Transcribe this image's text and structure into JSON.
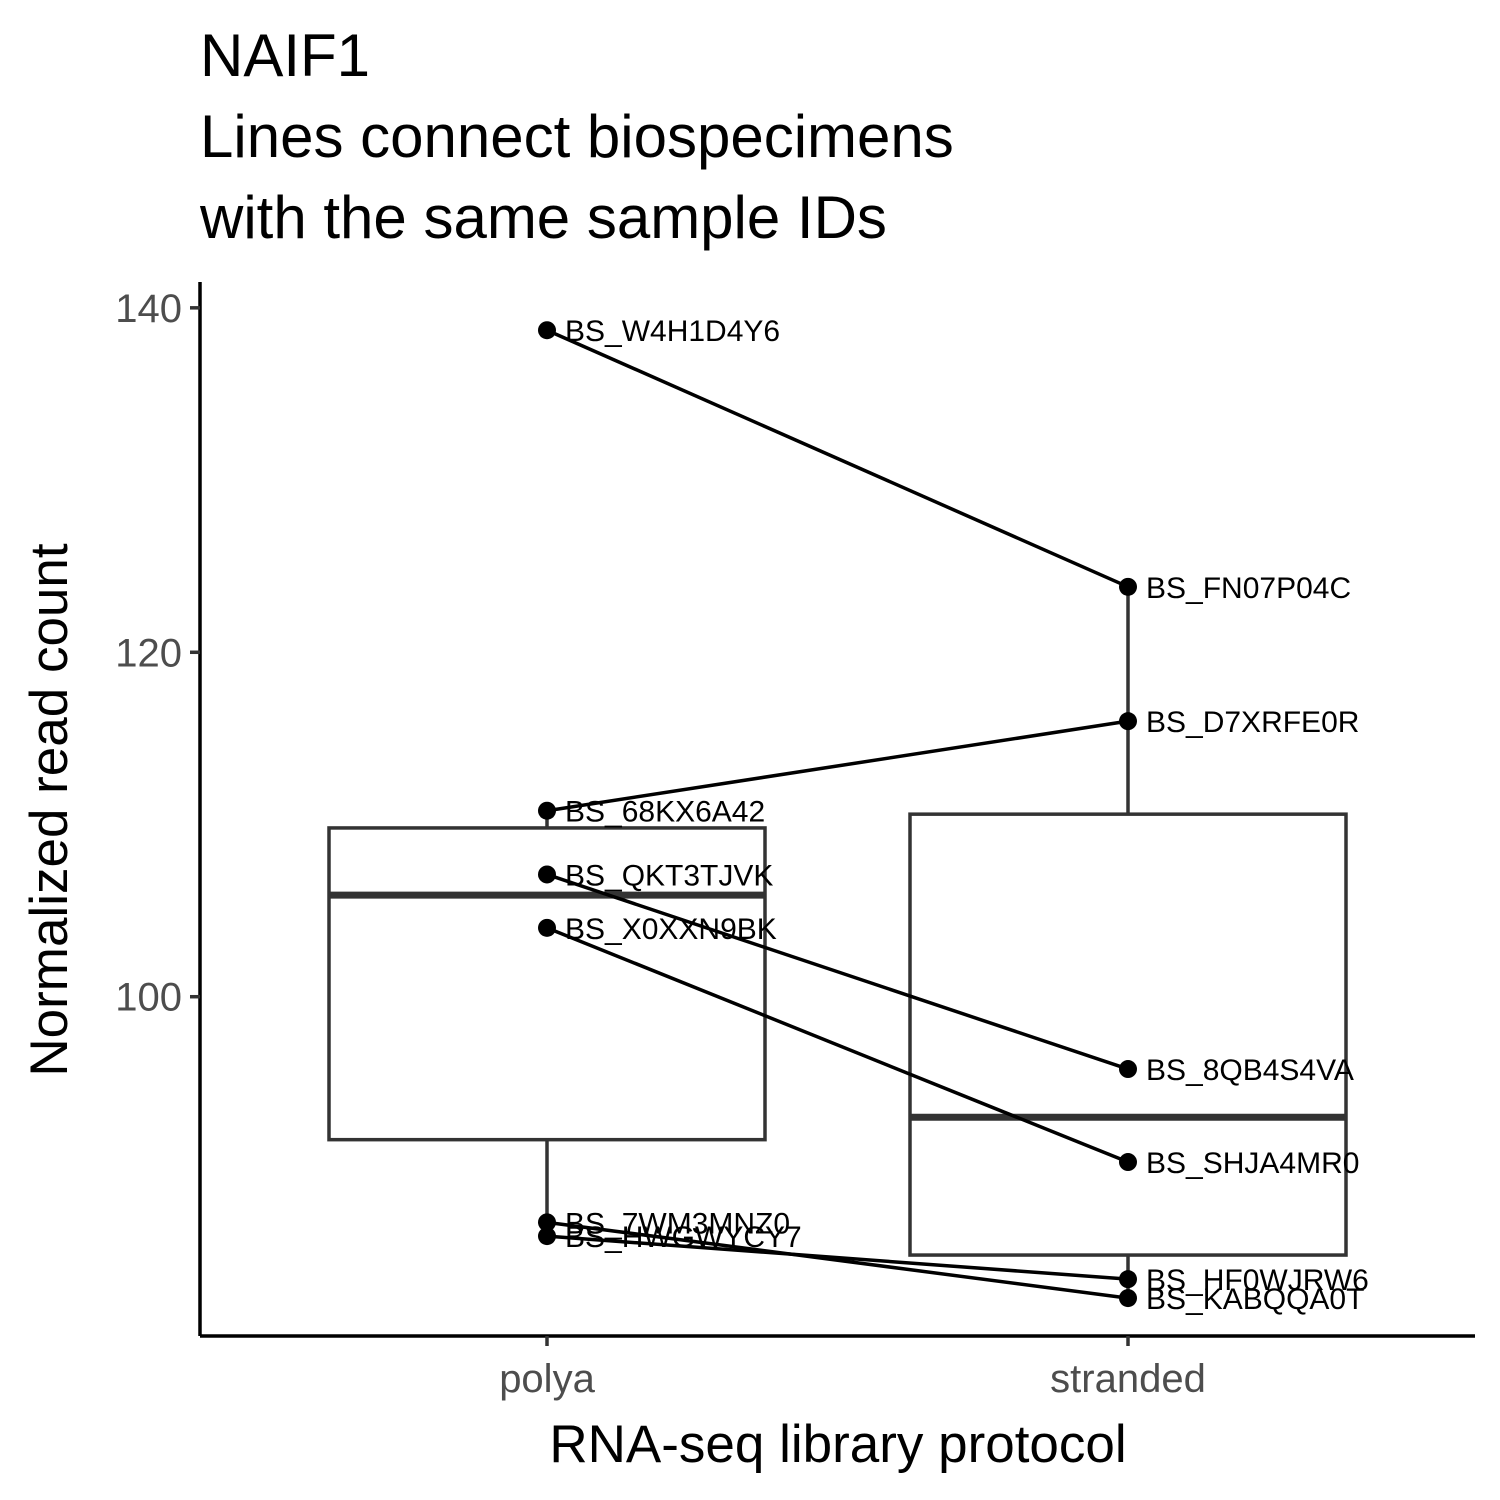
{
  "chart_data": {
    "type": "box",
    "title_lines": [
      "NAIF1",
      "Lines connect biospecimens",
      "with the same sample IDs"
    ],
    "xlabel": "RNA-seq library protocol",
    "ylabel": "Normalized read count",
    "categories": [
      "polya",
      "stranded"
    ],
    "yticks": [
      100,
      120,
      140
    ],
    "ylim": [
      80.3,
      141.5
    ],
    "grid": false,
    "boxes": [
      {
        "category": "polya",
        "lower_whisker": 86.1,
        "q1": 91.7,
        "median": 105.9,
        "q3": 109.8,
        "upper_whisker": 110.8
      },
      {
        "category": "stranded",
        "lower_whisker": 82.5,
        "q1": 85.0,
        "median": 93.0,
        "q3": 110.6,
        "upper_whisker": 123.8
      }
    ],
    "points": [
      {
        "label": "BS_W4H1D4Y6",
        "category": "polya",
        "value": 138.7
      },
      {
        "label": "BS_68KX6A42",
        "category": "polya",
        "value": 110.8
      },
      {
        "label": "BS_QKT3TJVK",
        "category": "polya",
        "value": 107.1
      },
      {
        "label": "BS_X0XXN9BK",
        "category": "polya",
        "value": 104.0
      },
      {
        "label": "BS_7WM3MNZ0",
        "category": "polya",
        "value": 86.9
      },
      {
        "label": "BS_HWGWYCY7",
        "category": "polya",
        "value": 86.1
      },
      {
        "label": "BS_FN07P04C",
        "category": "stranded",
        "value": 123.8
      },
      {
        "label": "BS_D7XRFE0R",
        "category": "stranded",
        "value": 116.0
      },
      {
        "label": "BS_8QB4S4VA",
        "category": "stranded",
        "value": 95.8
      },
      {
        "label": "BS_SHJA4MR0",
        "category": "stranded",
        "value": 90.4
      },
      {
        "label": "BS_HF0WJRW6",
        "category": "stranded",
        "value": 83.6
      },
      {
        "label": "BS_KABQQA0T",
        "category": "stranded",
        "value": 82.5
      }
    ],
    "pairs": [
      [
        "BS_W4H1D4Y6",
        "BS_FN07P04C"
      ],
      [
        "BS_68KX6A42",
        "BS_D7XRFE0R"
      ],
      [
        "BS_QKT3TJVK",
        "BS_8QB4S4VA"
      ],
      [
        "BS_X0XXN9BK",
        "BS_SHJA4MR0"
      ],
      [
        "BS_7WM3MNZ0",
        "BS_KABQQA0T"
      ],
      [
        "BS_HWGWYCY7",
        "BS_HF0WJRW6"
      ]
    ]
  }
}
